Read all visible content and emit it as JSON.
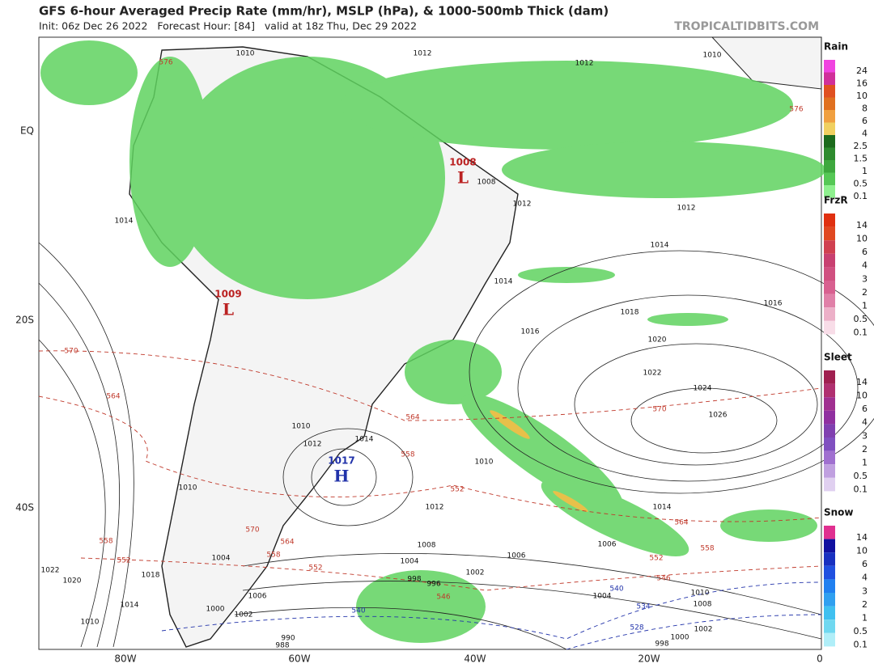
{
  "header": {
    "title": "GFS 6-hour Averaged Precip Rate (mm/hr), MSLP (hPa), & 1000-500mb Thick (dam)",
    "subtitle": "Init: 06z Dec 26 2022   Forecast Hour: [84]   valid at 18z Thu, Dec 29 2022",
    "site": "TROPICALTIDBITS.COM"
  },
  "map": {
    "lat_labels": [
      "EQ",
      "20S",
      "40S"
    ],
    "lon_labels": [
      "80W",
      "60W",
      "40W",
      "20W",
      "0"
    ],
    "centers": [
      {
        "letter": "L",
        "value": "1008"
      },
      {
        "letter": "L",
        "value": "1009"
      },
      {
        "letter": "H",
        "value": "1017"
      }
    ],
    "isobar_labels": [
      "1012",
      "1012",
      "1010",
      "1010",
      "1014",
      "1008",
      "1012",
      "1012",
      "1014",
      "1014",
      "1016",
      "1018",
      "1016",
      "1020",
      "1022",
      "1024",
      "1026",
      "1010",
      "1012",
      "1008",
      "1004",
      "1002",
      "1006",
      "1006",
      "1004",
      "1014",
      "1010",
      "1008",
      "1002",
      "1000",
      "998",
      "998",
      "996",
      "1010",
      "1012",
      "1014",
      "1018",
      "1014",
      "1010",
      "1022",
      "1020",
      "1000",
      "1002",
      "990",
      "988",
      "1006",
      "1004",
      "1010"
    ],
    "thickness_labels": [
      "570",
      "564",
      "558",
      "552",
      "564",
      "570",
      "564",
      "558",
      "552",
      "558",
      "552",
      "546",
      "546",
      "552",
      "558",
      "564",
      "570",
      "576",
      "576"
    ],
    "cold_thickness_labels": [
      "540",
      "534",
      "528",
      "540"
    ]
  },
  "legends": [
    {
      "title": "Rain",
      "ticks": [
        "24",
        "16",
        "10",
        "8",
        "6",
        "4",
        "2.5",
        "1.5",
        "1",
        "0.5",
        "0.1"
      ]
    },
    {
      "title": "FrzR",
      "ticks": [
        "14",
        "10",
        "6",
        "4",
        "3",
        "2",
        "1",
        "0.5",
        "0.1"
      ]
    },
    {
      "title": "Sleet",
      "ticks": [
        "14",
        "10",
        "6",
        "4",
        "3",
        "2",
        "1",
        "0.5",
        "0.1"
      ]
    },
    {
      "title": "Snow",
      "ticks": [
        "14",
        "10",
        "6",
        "4",
        "3",
        "2",
        "1",
        "0.5",
        "0.1"
      ]
    }
  ]
}
